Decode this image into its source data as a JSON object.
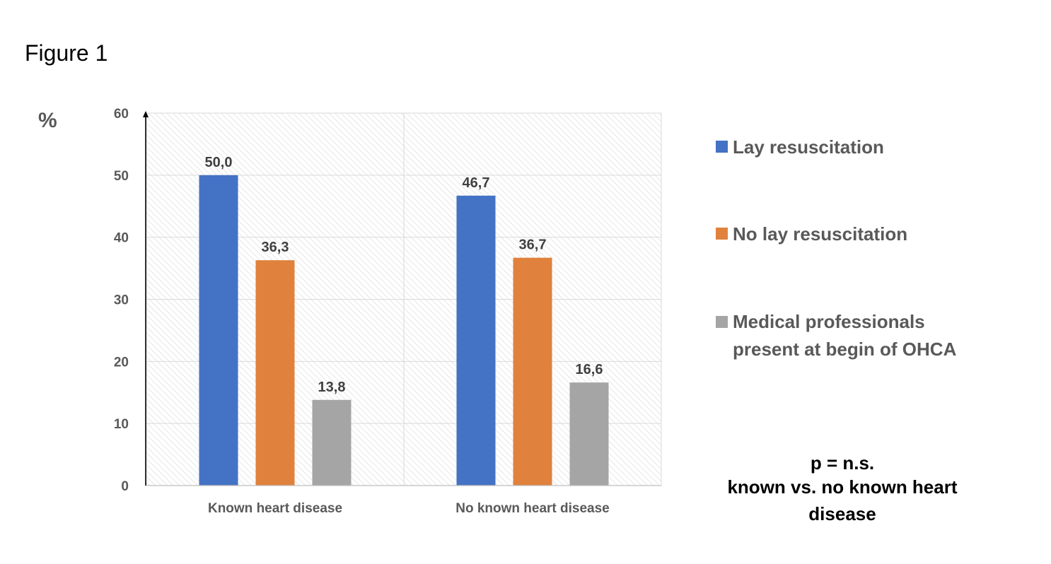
{
  "figure_label": "Figure 1",
  "chart_data": {
    "type": "bar",
    "ylabel": "%",
    "ylim": [
      0,
      60
    ],
    "yticks": [
      0,
      10,
      20,
      30,
      40,
      50,
      60
    ],
    "categories": [
      "Known heart disease",
      "No known heart disease"
    ],
    "series": [
      {
        "name": "Lay resuscitation",
        "values": [
          50.0,
          46.7
        ],
        "labels": [
          "50,0",
          "46,7"
        ],
        "color": "#4472C4"
      },
      {
        "name": "No lay resuscitation",
        "values": [
          36.3,
          36.7
        ],
        "labels": [
          "36,3",
          "36,7"
        ],
        "color": "#E0823D"
      },
      {
        "name": "Medical professionals present at begin of OHCA",
        "legend_lines": [
          "Medical professionals",
          "present at begin of OHCA"
        ],
        "values": [
          13.8,
          16.6
        ],
        "labels": [
          "13,8",
          "16,6"
        ],
        "color": "#A5A5A5"
      }
    ],
    "grid": true,
    "legend": "right",
    "annotation_lines": [
      "p = n.s.",
      "known vs. no known heart",
      "disease"
    ]
  }
}
